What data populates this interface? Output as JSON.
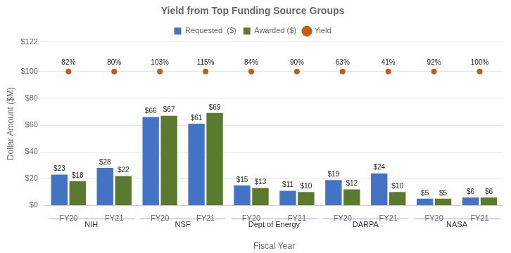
{
  "chart_data": {
    "type": "bar",
    "title": "Yield from Top Funding Source Groups",
    "xlabel": "Fiscal Year",
    "ylabel": "Dollar Amount ($M)",
    "categories": [
      "FY20",
      "FY21",
      "FY20",
      "FY21",
      "FY20",
      "FY21",
      "FY20",
      "FY21",
      "FY20",
      "FY21"
    ],
    "groups": [
      "NIH",
      "NSF",
      "Dept of Energy",
      "DARPA",
      "NASA"
    ],
    "series": [
      {
        "name": "Requested  ($)",
        "color": "#4472C4",
        "values": [
          23,
          28,
          66,
          61,
          15,
          11,
          19,
          24,
          5,
          6
        ],
        "value_labels": [
          "$23",
          "$28",
          "$66",
          "$61",
          "$15",
          "$11",
          "$19",
          "$24",
          "$5",
          "$6"
        ]
      },
      {
        "name": "Awarded ($)",
        "color": "#5B7A2E",
        "values": [
          18,
          22,
          67,
          69,
          13,
          10,
          12,
          10,
          5,
          6
        ],
        "value_labels": [
          "$18",
          "$22",
          "$67",
          "$69",
          "$13",
          "$10",
          "$12",
          "$10",
          "$5",
          "$6"
        ]
      },
      {
        "name": "Yield",
        "type": "scatter",
        "marker": "circle",
        "color": "#C55A11",
        "values": [
          82,
          80,
          103,
          115,
          84,
          90,
          63,
          41,
          92,
          100
        ],
        "value_labels": [
          "82%",
          "80%",
          "103%",
          "115%",
          "84%",
          "90%",
          "63%",
          "41%",
          "92%",
          "100%"
        ]
      }
    ],
    "ylim": [
      0,
      122
    ],
    "yticks": [
      {
        "value": 0,
        "label": "$0"
      },
      {
        "value": 20,
        "label": "$20"
      },
      {
        "value": 40,
        "label": "$40"
      },
      {
        "value": 60,
        "label": "$60"
      },
      {
        "value": 80,
        "label": "$80"
      },
      {
        "value": 100,
        "label": "$100"
      },
      {
        "value": 122,
        "label": "$122"
      }
    ],
    "grid": true,
    "legend": "top",
    "data_labels": true
  }
}
